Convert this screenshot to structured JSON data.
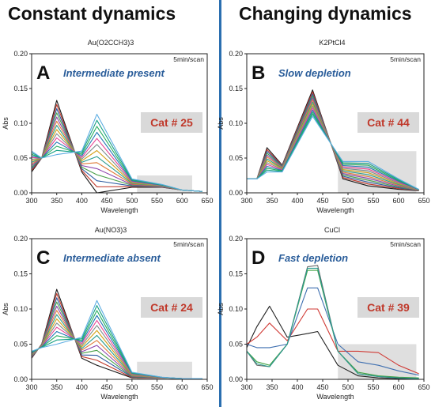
{
  "headers": {
    "left": "Constant dynamics",
    "right": "Changing dynamics"
  },
  "chart_data": [
    {
      "type": "line",
      "panel_letter": "A",
      "compound": "Au(O2CCH3)3",
      "annotation": "Intermediate present",
      "rate_label": "5min/scan",
      "catalyst_label": "Cat # 25",
      "xlabel": "Wavelength",
      "ylabel": "Abs",
      "xlim": [
        300,
        650
      ],
      "ylim": [
        0,
        0.2
      ],
      "x_ticks": [
        300,
        350,
        400,
        450,
        500,
        550,
        600,
        650
      ],
      "y_ticks": [
        0.0,
        0.05,
        0.1,
        0.15,
        0.2
      ],
      "shaded_region": {
        "x": [
          510,
          620
        ],
        "y": [
          0,
          0.025
        ]
      },
      "series_count": 14,
      "series_template": {
        "x": [
          300,
          320,
          350,
          400,
          430,
          500,
          560,
          600,
          640
        ],
        "first": [
          0.03,
          0.05,
          0.133,
          0.03,
          0.0,
          0.008,
          0.008,
          0.004,
          0.002
        ],
        "last": [
          0.06,
          0.05,
          0.055,
          0.06,
          0.113,
          0.02,
          0.012,
          0.004,
          0.002
        ]
      }
    },
    {
      "type": "line",
      "panel_letter": "B",
      "compound": "K2PtCl4",
      "annotation": "Slow depletion",
      "rate_label": "5min/scan",
      "catalyst_label": "Cat # 44",
      "xlabel": "Wavelength",
      "ylabel": "Abs",
      "xlim": [
        300,
        650
      ],
      "ylim": [
        0,
        0.2
      ],
      "x_ticks": [
        300,
        350,
        400,
        450,
        500,
        550,
        600,
        650
      ],
      "y_ticks": [
        0.0,
        0.05,
        0.1,
        0.15,
        0.2
      ],
      "shaded_region": {
        "x": [
          480,
          635
        ],
        "y": [
          0,
          0.06
        ]
      },
      "series_count": 14,
      "series_template": {
        "x": [
          300,
          320,
          340,
          370,
          430,
          490,
          540,
          600,
          640
        ],
        "first": [
          0.02,
          0.02,
          0.065,
          0.04,
          0.148,
          0.02,
          0.01,
          0.005,
          0.003
        ],
        "last": [
          0.02,
          0.02,
          0.03,
          0.03,
          0.11,
          0.045,
          0.045,
          0.02,
          0.005
        ]
      }
    },
    {
      "type": "line",
      "panel_letter": "C",
      "compound": "Au(NO3)3",
      "annotation": "Intermediate absent",
      "rate_label": "5min/scan",
      "catalyst_label": "Cat # 24",
      "xlabel": "Wavelength",
      "ylabel": "Abs",
      "xlim": [
        300,
        650
      ],
      "ylim": [
        0,
        0.2
      ],
      "x_ticks": [
        300,
        350,
        400,
        450,
        500,
        550,
        600,
        650
      ],
      "y_ticks": [
        0.0,
        0.05,
        0.1,
        0.15,
        0.2
      ],
      "shaded_region": {
        "x": [
          510,
          620
        ],
        "y": [
          0,
          0.025
        ]
      },
      "series_count": 14,
      "series_template": {
        "x": [
          300,
          320,
          350,
          400,
          430,
          500,
          560,
          600,
          640
        ],
        "first": [
          0.03,
          0.05,
          0.128,
          0.03,
          0.02,
          0.002,
          0.002,
          0.001,
          0.001
        ],
        "last": [
          0.04,
          0.045,
          0.05,
          0.06,
          0.112,
          0.01,
          0.003,
          0.001,
          0.001
        ]
      }
    },
    {
      "type": "line",
      "panel_letter": "D",
      "compound": "CuCl",
      "annotation": "Fast depletion",
      "rate_label": "5min/scan",
      "catalyst_label": "Cat # 39",
      "xlabel": "Wavelength",
      "ylabel": "Abs",
      "xlim": [
        300,
        650
      ],
      "ylim": [
        0,
        0.2
      ],
      "x_ticks": [
        300,
        350,
        400,
        450,
        500,
        550,
        600,
        650
      ],
      "y_ticks": [
        0.0,
        0.05,
        0.1,
        0.15,
        0.2
      ],
      "shaded_region": {
        "x": [
          480,
          635
        ],
        "y": [
          0,
          0.05
        ]
      },
      "series": [
        {
          "color": "#222222",
          "x": [
            300,
            320,
            345,
            380,
            420,
            440,
            480,
            520,
            560,
            600,
            640
          ],
          "y": [
            0.045,
            0.075,
            0.104,
            0.06,
            0.065,
            0.068,
            0.02,
            0.005,
            0.002,
            0.001,
            0.001
          ]
        },
        {
          "color": "#d03a35",
          "x": [
            300,
            320,
            345,
            380,
            420,
            440,
            480,
            520,
            560,
            600,
            640
          ],
          "y": [
            0.05,
            0.06,
            0.08,
            0.055,
            0.1,
            0.1,
            0.04,
            0.04,
            0.038,
            0.02,
            0.008
          ]
        },
        {
          "color": "#3e6fb0",
          "x": [
            300,
            320,
            345,
            380,
            420,
            440,
            480,
            520,
            560,
            600,
            640
          ],
          "y": [
            0.05,
            0.045,
            0.045,
            0.05,
            0.13,
            0.13,
            0.05,
            0.025,
            0.02,
            0.012,
            0.006
          ]
        },
        {
          "color": "#42a342",
          "x": [
            300,
            320,
            345,
            380,
            420,
            440,
            480,
            520,
            560,
            600,
            640
          ],
          "y": [
            0.04,
            0.025,
            0.02,
            0.05,
            0.155,
            0.155,
            0.04,
            0.01,
            0.005,
            0.003,
            0.002
          ]
        },
        {
          "color": "#6a6a6a",
          "x": [
            300,
            320,
            345,
            380,
            420,
            440,
            480,
            520,
            560,
            600,
            640
          ],
          "y": [
            0.04,
            0.02,
            0.018,
            0.05,
            0.16,
            0.162,
            0.04,
            0.008,
            0.004,
            0.002,
            0.001
          ]
        },
        {
          "color": "#2a9d8f",
          "x": [
            300,
            320,
            345,
            380,
            420,
            440,
            480,
            520,
            560,
            600,
            640
          ],
          "y": [
            0.04,
            0.022,
            0.018,
            0.05,
            0.158,
            0.158,
            0.04,
            0.008,
            0.004,
            0.002,
            0.001
          ]
        }
      ]
    }
  ]
}
